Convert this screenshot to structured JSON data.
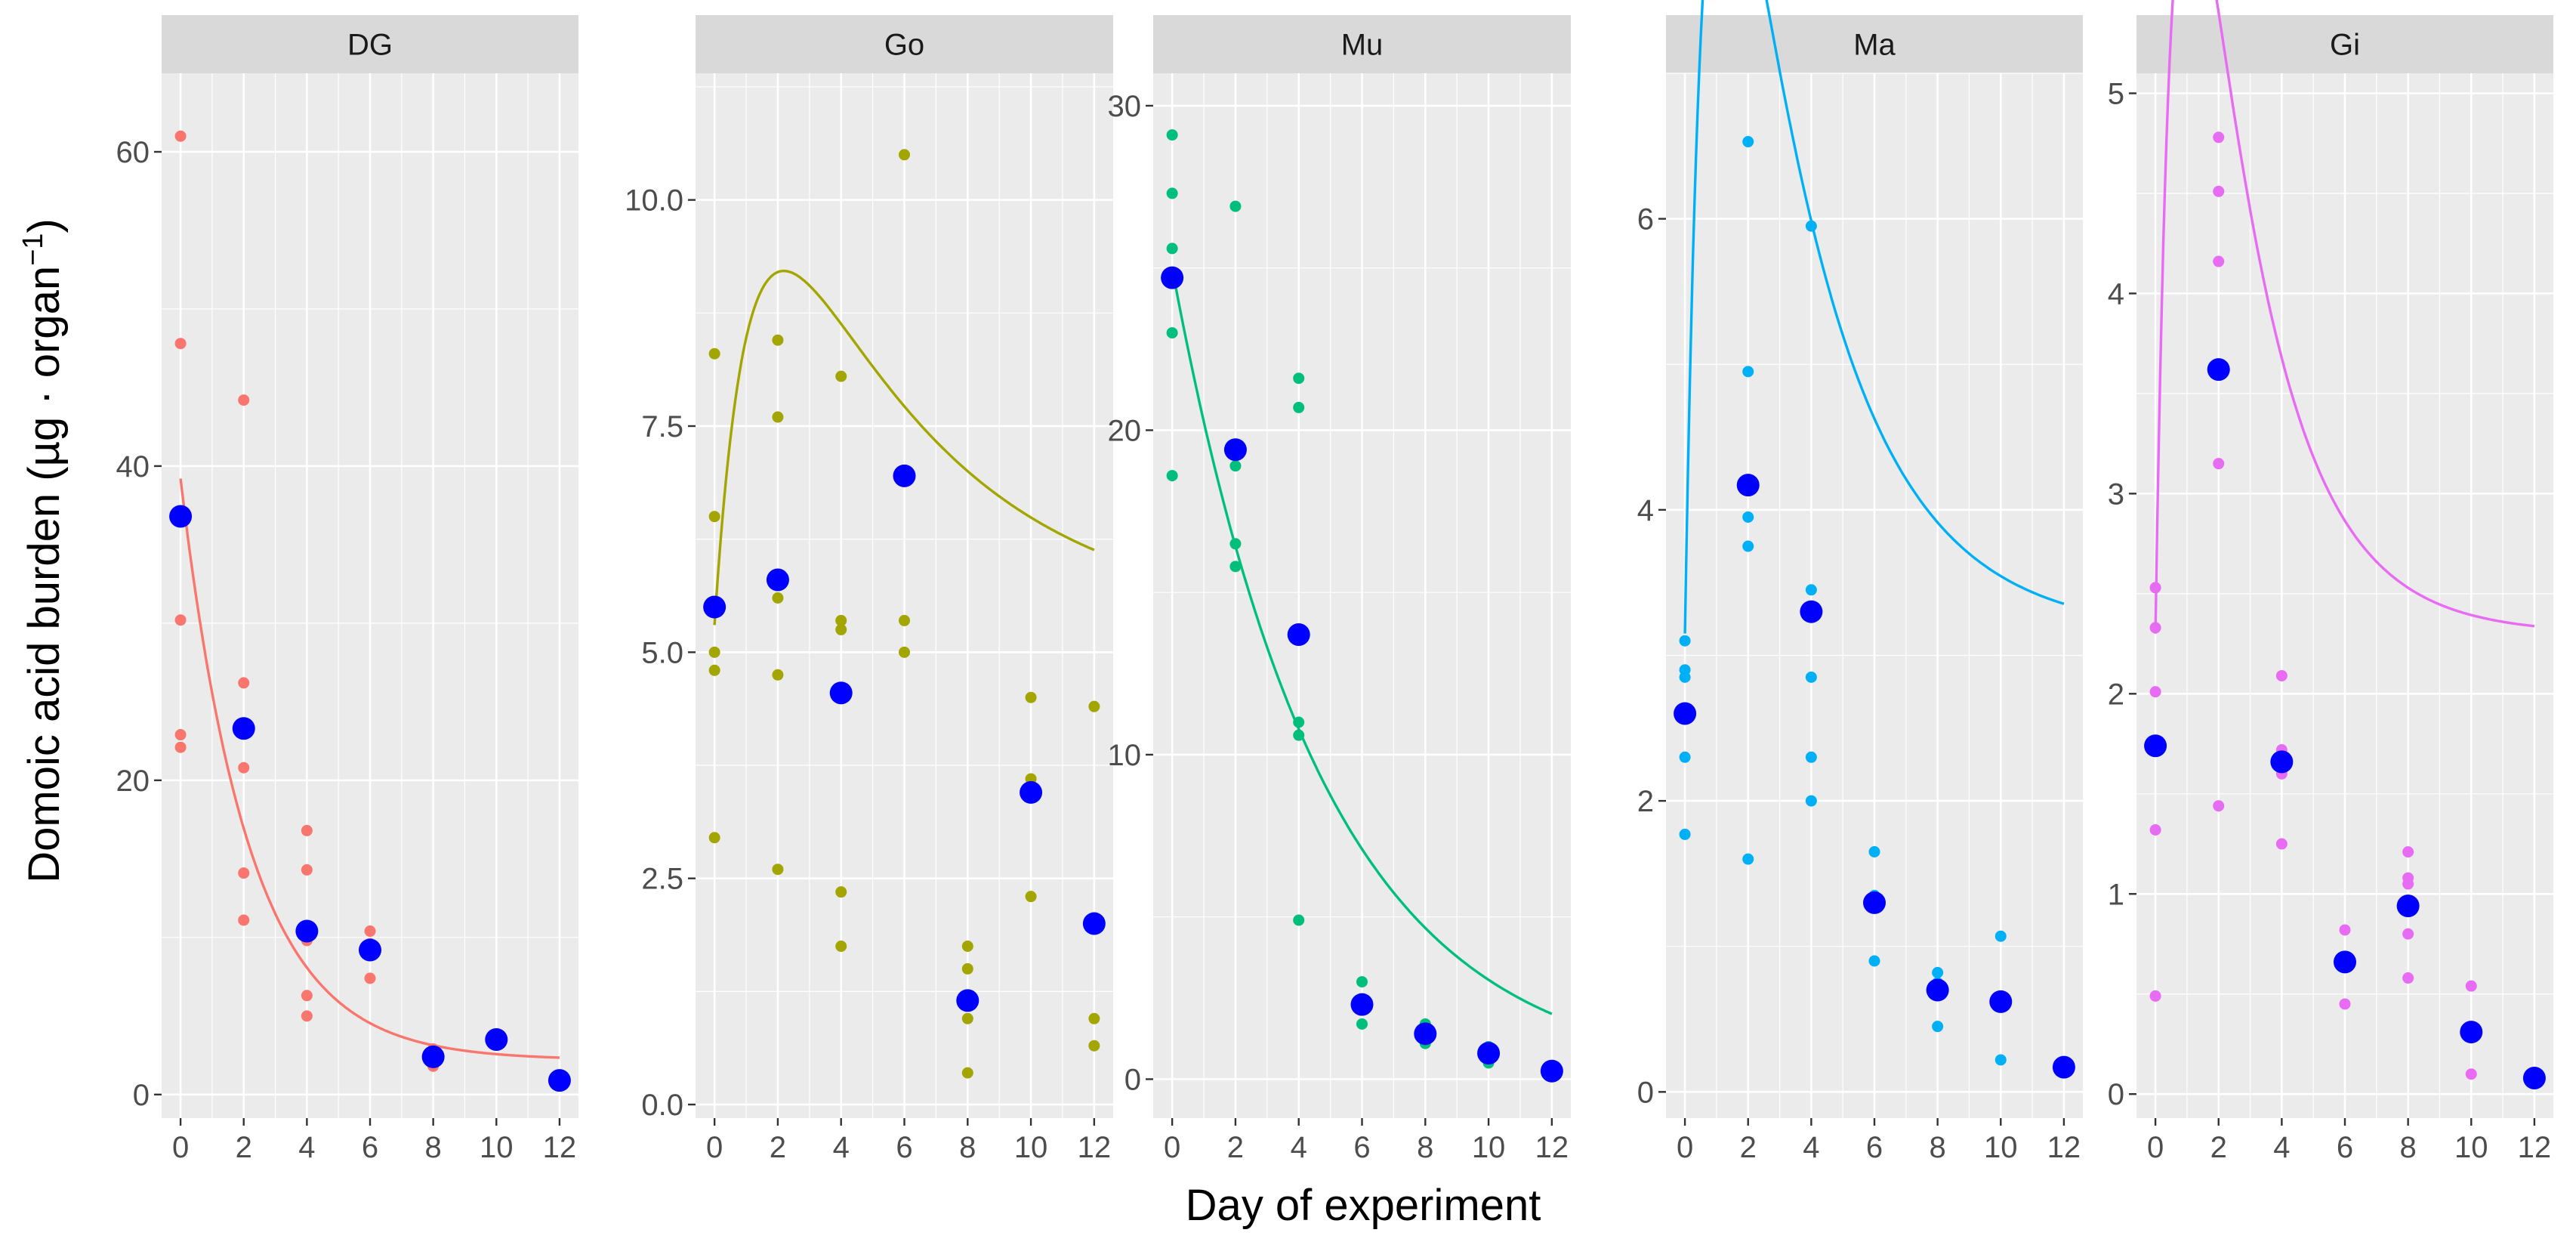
{
  "chart_data": {
    "type": "scatter",
    "xlabel": "Day of experiment",
    "ylabel": "Domoic acid burden (µg · organ",
    "ylabel_superscript": "−1",
    "ylabel_close": ")",
    "mean_color": "#0000ff",
    "x_breaks": [
      0,
      2,
      4,
      6,
      8,
      10,
      12
    ],
    "x_tick_labels": [
      "0",
      "2",
      "4",
      "6",
      "8",
      "10",
      "12"
    ],
    "xlim": [
      -0.6,
      12.6
    ],
    "facets": [
      {
        "name": "DG",
        "color": "#f8766d",
        "ylim": [
          -1.5,
          65
        ],
        "y_breaks": [
          0,
          20,
          40,
          60
        ],
        "y_tick_labels": [
          "0",
          "20",
          "40",
          "60"
        ],
        "points": [
          [
            0,
            61.0
          ],
          [
            0,
            47.8
          ],
          [
            0,
            30.2
          ],
          [
            0,
            22.9
          ],
          [
            0,
            22.1
          ],
          [
            2,
            44.2
          ],
          [
            2,
            26.2
          ],
          [
            2,
            20.8
          ],
          [
            2,
            14.1
          ],
          [
            2,
            11.1
          ],
          [
            4,
            16.8
          ],
          [
            4,
            14.3
          ],
          [
            4,
            9.8
          ],
          [
            4,
            6.3
          ],
          [
            4,
            5.0
          ],
          [
            6,
            10.4
          ],
          [
            6,
            9.6
          ],
          [
            6,
            7.4
          ],
          [
            8,
            2.9
          ],
          [
            8,
            1.8
          ],
          [
            10,
            3.6
          ],
          [
            10,
            3.2
          ],
          [
            12,
            1.0
          ]
        ],
        "means": [
          [
            0,
            36.8
          ],
          [
            2,
            23.3
          ],
          [
            4,
            10.4
          ],
          [
            6,
            9.2
          ],
          [
            8,
            2.4
          ],
          [
            10,
            3.5
          ],
          [
            12,
            0.9
          ]
        ],
        "fit": {
          "model": "decay",
          "a": 37.0,
          "b": 0.0,
          "k": 0.46,
          "c": 2.2
        }
      },
      {
        "name": "Go",
        "color": "#a3a500",
        "ylim": [
          -0.15,
          11.4
        ],
        "y_breaks": [
          0,
          2.5,
          5,
          7.5,
          10
        ],
        "y_tick_labels": [
          "0.0",
          "2.5",
          "5.0",
          "7.5",
          "10.0"
        ],
        "points": [
          [
            0,
            8.3
          ],
          [
            0,
            6.5
          ],
          [
            0,
            5.0
          ],
          [
            0,
            4.8
          ],
          [
            0,
            2.95
          ],
          [
            2,
            8.45
          ],
          [
            2,
            7.6
          ],
          [
            2,
            5.6
          ],
          [
            2,
            4.75
          ],
          [
            2,
            2.6
          ],
          [
            4,
            8.05
          ],
          [
            4,
            5.35
          ],
          [
            4,
            5.25
          ],
          [
            4,
            2.35
          ],
          [
            4,
            1.75
          ],
          [
            6,
            10.5
          ],
          [
            6,
            5.35
          ],
          [
            6,
            5.0
          ],
          [
            8,
            1.75
          ],
          [
            8,
            1.5
          ],
          [
            8,
            0.95
          ],
          [
            8,
            0.35
          ],
          [
            10,
            4.5
          ],
          [
            10,
            3.6
          ],
          [
            10,
            2.3
          ],
          [
            12,
            4.4
          ],
          [
            12,
            0.95
          ],
          [
            12,
            0.65
          ]
        ],
        "means": [
          [
            0,
            5.5
          ],
          [
            2,
            5.8
          ],
          [
            4,
            4.55
          ],
          [
            6,
            6.95
          ],
          [
            8,
            1.15
          ],
          [
            10,
            3.45
          ],
          [
            12,
            2.0
          ]
        ],
        "fit": {
          "model": "rise-decay",
          "a": 5.3,
          "b": 7.2,
          "k": 0.75,
          "kd": 0.18,
          "c": 0.0
        }
      },
      {
        "name": "Mu",
        "color": "#00bf7d",
        "ylim": [
          -1.2,
          31.0
        ],
        "y_breaks": [
          0,
          10,
          20,
          30
        ],
        "y_tick_labels": [
          "0",
          "10",
          "20",
          "30"
        ],
        "points": [
          [
            0,
            29.1
          ],
          [
            0,
            27.3
          ],
          [
            0,
            25.6
          ],
          [
            0,
            23.0
          ],
          [
            0,
            18.6
          ],
          [
            2,
            26.9
          ],
          [
            2,
            18.9
          ],
          [
            2,
            16.5
          ],
          [
            2,
            15.8
          ],
          [
            4,
            21.6
          ],
          [
            4,
            20.7
          ],
          [
            4,
            11.0
          ],
          [
            4,
            10.6
          ],
          [
            4,
            4.9
          ],
          [
            6,
            3.0
          ],
          [
            6,
            2.4
          ],
          [
            6,
            1.7
          ],
          [
            8,
            1.7
          ],
          [
            8,
            1.1
          ],
          [
            10,
            1.0
          ],
          [
            10,
            0.5
          ],
          [
            12,
            0.3
          ]
        ],
        "means": [
          [
            0,
            24.7
          ],
          [
            2,
            19.4
          ],
          [
            4,
            13.7
          ],
          [
            6,
            2.3
          ],
          [
            8,
            1.4
          ],
          [
            10,
            0.8
          ],
          [
            12,
            0.25
          ]
        ],
        "fit": {
          "model": "decay",
          "a": 25.0,
          "b": 0.0,
          "k": 0.21,
          "c": 0.0
        }
      },
      {
        "name": "Ma",
        "color": "#00b0f6",
        "ylim": [
          -0.18,
          7.0
        ],
        "y_breaks": [
          0,
          2,
          4,
          6
        ],
        "y_tick_labels": [
          "0",
          "2",
          "4",
          "6"
        ],
        "points": [
          [
            0,
            3.1
          ],
          [
            0,
            2.9
          ],
          [
            0,
            2.85
          ],
          [
            0,
            2.3
          ],
          [
            0,
            1.77
          ],
          [
            2,
            6.53
          ],
          [
            2,
            4.95
          ],
          [
            2,
            3.95
          ],
          [
            2,
            3.75
          ],
          [
            2,
            1.6
          ],
          [
            4,
            5.95
          ],
          [
            4,
            3.45
          ],
          [
            4,
            2.85
          ],
          [
            4,
            2.3
          ],
          [
            4,
            2.0
          ],
          [
            6,
            1.65
          ],
          [
            6,
            1.35
          ],
          [
            6,
            0.9
          ],
          [
            8,
            0.82
          ],
          [
            8,
            0.75
          ],
          [
            8,
            0.45
          ],
          [
            10,
            1.07
          ],
          [
            10,
            0.22
          ],
          [
            12,
            0.2
          ]
        ],
        "means": [
          [
            0,
            2.6
          ],
          [
            2,
            4.17
          ],
          [
            4,
            3.3
          ],
          [
            6,
            1.3
          ],
          [
            8,
            0.7
          ],
          [
            10,
            0.62
          ],
          [
            12,
            0.17
          ]
        ],
        "fit": {
          "model": "rise-decay",
          "a": 2.5,
          "b": 10.7,
          "k": 1.2,
          "kd": 0.33,
          "c": 0.65
        }
      },
      {
        "name": "Gi",
        "color": "#e76bf3",
        "ylim": [
          -0.12,
          5.1
        ],
        "y_breaks": [
          0,
          1,
          2,
          3,
          4,
          5
        ],
        "y_tick_labels": [
          "0",
          "1",
          "2",
          "3",
          "4",
          "5"
        ],
        "points": [
          [
            0,
            2.53
          ],
          [
            0,
            2.33
          ],
          [
            0,
            2.01
          ],
          [
            0,
            1.32
          ],
          [
            0,
            0.49
          ],
          [
            2,
            4.78
          ],
          [
            2,
            4.51
          ],
          [
            2,
            4.16
          ],
          [
            2,
            3.15
          ],
          [
            2,
            1.44
          ],
          [
            4,
            2.09
          ],
          [
            4,
            1.72
          ],
          [
            4,
            1.6
          ],
          [
            4,
            1.25
          ],
          [
            6,
            0.82
          ],
          [
            6,
            0.45
          ],
          [
            8,
            1.21
          ],
          [
            8,
            1.08
          ],
          [
            8,
            1.05
          ],
          [
            8,
            0.8
          ],
          [
            8,
            0.58
          ],
          [
            10,
            0.54
          ],
          [
            10,
            0.1
          ],
          [
            12,
            0.08
          ]
        ],
        "means": [
          [
            0,
            1.74
          ],
          [
            2,
            3.62
          ],
          [
            4,
            1.66
          ],
          [
            6,
            0.66
          ],
          [
            8,
            0.94
          ],
          [
            10,
            0.31
          ],
          [
            12,
            0.08
          ]
        ],
        "fit": {
          "model": "rise-decay",
          "a": 1.9,
          "b": 8.4,
          "k": 1.2,
          "kd": 0.45,
          "c": 0.4
        }
      }
    ]
  }
}
